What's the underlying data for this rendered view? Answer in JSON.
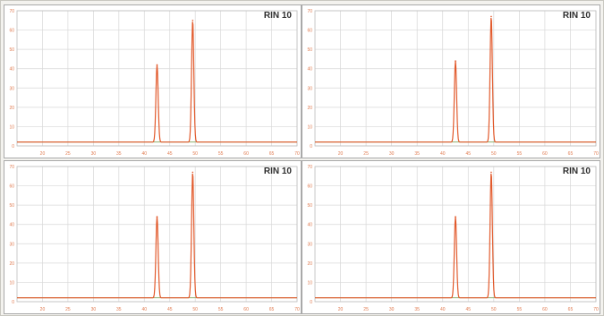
{
  "colors": {
    "trace": "#e25a2c",
    "grid": "#d8d8d8",
    "tick_text": "#e07a4f",
    "baseline": "#8fae6e"
  },
  "chart_data": [
    {
      "type": "line",
      "title": "RIN 10",
      "xlim": [
        15,
        70
      ],
      "ylim": [
        0,
        70
      ],
      "x_ticks": [
        20,
        25,
        30,
        35,
        40,
        45,
        50,
        55,
        60,
        65,
        70
      ],
      "y_ticks": [
        0,
        10,
        20,
        30,
        40,
        50,
        60,
        70
      ],
      "grid": true,
      "peaks": [
        {
          "x": 42.5,
          "height": 40
        },
        {
          "x": 49.5,
          "height": 63
        }
      ],
      "baseline": 2
    },
    {
      "type": "line",
      "title": "RIN 10",
      "xlim": [
        15,
        70
      ],
      "ylim": [
        0,
        70
      ],
      "x_ticks": [
        20,
        25,
        30,
        35,
        40,
        45,
        50,
        55,
        60,
        65,
        70
      ],
      "y_ticks": [
        0,
        10,
        20,
        30,
        40,
        50,
        60,
        70
      ],
      "grid": true,
      "peaks": [
        {
          "x": 42.5,
          "height": 42
        },
        {
          "x": 49.5,
          "height": 65
        }
      ],
      "baseline": 2
    },
    {
      "type": "line",
      "title": "RIN 10",
      "xlim": [
        15,
        70
      ],
      "ylim": [
        0,
        70
      ],
      "x_ticks": [
        20,
        25,
        30,
        35,
        40,
        45,
        50,
        55,
        60,
        65,
        70
      ],
      "y_ticks": [
        0,
        10,
        20,
        30,
        40,
        50,
        60,
        70
      ],
      "grid": true,
      "peaks": [
        {
          "x": 42.5,
          "height": 42
        },
        {
          "x": 49.5,
          "height": 65
        }
      ],
      "baseline": 2
    },
    {
      "type": "line",
      "title": "RIN 10",
      "xlim": [
        15,
        70
      ],
      "ylim": [
        0,
        70
      ],
      "x_ticks": [
        20,
        25,
        30,
        35,
        40,
        45,
        50,
        55,
        60,
        65,
        70
      ],
      "y_ticks": [
        0,
        10,
        20,
        30,
        40,
        50,
        60,
        70
      ],
      "grid": true,
      "peaks": [
        {
          "x": 42.5,
          "height": 42
        },
        {
          "x": 49.5,
          "height": 65
        }
      ],
      "baseline": 2
    }
  ]
}
